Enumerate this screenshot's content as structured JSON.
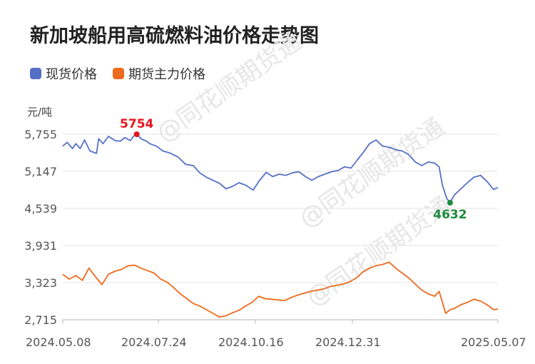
{
  "title": "新加坡船用高硫燃料油价格走势图",
  "watermark": "@同花顺期货通",
  "chart_data": {
    "type": "line",
    "yunit": "元/吨",
    "ylim": [
      2715,
      5755
    ],
    "yticks": [
      "5,755",
      "5,147",
      "4,539",
      "3,931",
      "3,323",
      "2,715"
    ],
    "ytick_values": [
      5755,
      5147,
      4539,
      3931,
      3323,
      2715
    ],
    "xticks": [
      "2024.05.08",
      "2024.07.24",
      "2024.10.16",
      "2024.12.31",
      "2025.05.07"
    ],
    "grid": true,
    "legend_position": "top-left",
    "n_points": 250,
    "series": [
      {
        "name": "现货价格",
        "color": "#5470c6",
        "points": [
          [
            0,
            5560
          ],
          [
            4,
            5620
          ],
          [
            9,
            5520
          ],
          [
            12,
            5600
          ],
          [
            16,
            5520
          ],
          [
            20,
            5660
          ],
          [
            25,
            5480
          ],
          [
            31,
            5440
          ],
          [
            33,
            5680
          ],
          [
            37,
            5600
          ],
          [
            42,
            5720
          ],
          [
            48,
            5650
          ],
          [
            53,
            5640
          ],
          [
            57,
            5700
          ],
          [
            62,
            5650
          ],
          [
            66,
            5740
          ],
          [
            68,
            5754
          ],
          [
            72,
            5680
          ],
          [
            77,
            5640
          ],
          [
            80,
            5600
          ],
          [
            86,
            5560
          ],
          [
            92,
            5480
          ],
          [
            98,
            5450
          ],
          [
            106,
            5380
          ],
          [
            113,
            5260
          ],
          [
            120,
            5240
          ],
          [
            126,
            5120
          ],
          [
            132,
            5050
          ],
          [
            138,
            5000
          ],
          [
            144,
            4950
          ],
          [
            150,
            4860
          ],
          [
            156,
            4900
          ],
          [
            162,
            4960
          ],
          [
            168,
            4920
          ],
          [
            175,
            4840
          ],
          [
            181,
            5000
          ],
          [
            187,
            5130
          ],
          [
            193,
            5060
          ],
          [
            199,
            5100
          ],
          [
            205,
            5080
          ],
          [
            211,
            5120
          ],
          [
            217,
            5140
          ],
          [
            223,
            5060
          ],
          [
            229,
            5000
          ],
          [
            235,
            5060
          ],
          [
            241,
            5100
          ],
          [
            247,
            5140
          ],
          [
            253,
            5160
          ],
          [
            259,
            5220
          ],
          [
            265,
            5200
          ],
          [
            271,
            5340
          ],
          [
            276,
            5450
          ],
          [
            282,
            5600
          ],
          [
            288,
            5660
          ],
          [
            294,
            5560
          ],
          [
            300,
            5540
          ],
          [
            306,
            5500
          ],
          [
            312,
            5480
          ],
          [
            318,
            5420
          ],
          [
            324,
            5300
          ],
          [
            330,
            5240
          ],
          [
            336,
            5300
          ],
          [
            342,
            5280
          ],
          [
            346,
            5220
          ],
          [
            349,
            4920
          ],
          [
            353,
            4700
          ],
          [
            356,
            4632
          ],
          [
            360,
            4760
          ],
          [
            366,
            4860
          ],
          [
            372,
            4960
          ],
          [
            378,
            5050
          ],
          [
            384,
            5080
          ],
          [
            390,
            4980
          ],
          [
            396,
            4850
          ],
          [
            400,
            4880
          ]
        ]
      },
      {
        "name": "期货主力价格",
        "color": "#ee6a1c",
        "points": [
          [
            0,
            3460
          ],
          [
            6,
            3380
          ],
          [
            12,
            3440
          ],
          [
            18,
            3360
          ],
          [
            24,
            3560
          ],
          [
            30,
            3420
          ],
          [
            36,
            3290
          ],
          [
            42,
            3460
          ],
          [
            48,
            3510
          ],
          [
            54,
            3540
          ],
          [
            60,
            3600
          ],
          [
            66,
            3610
          ],
          [
            72,
            3560
          ],
          [
            78,
            3520
          ],
          [
            84,
            3480
          ],
          [
            90,
            3380
          ],
          [
            96,
            3330
          ],
          [
            102,
            3240
          ],
          [
            108,
            3140
          ],
          [
            114,
            3060
          ],
          [
            120,
            2980
          ],
          [
            126,
            2940
          ],
          [
            132,
            2880
          ],
          [
            138,
            2820
          ],
          [
            144,
            2760
          ],
          [
            150,
            2780
          ],
          [
            156,
            2830
          ],
          [
            162,
            2870
          ],
          [
            168,
            2940
          ],
          [
            174,
            3000
          ],
          [
            180,
            3100
          ],
          [
            186,
            3060
          ],
          [
            192,
            3050
          ],
          [
            198,
            3040
          ],
          [
            204,
            3030
          ],
          [
            210,
            3080
          ],
          [
            216,
            3120
          ],
          [
            222,
            3150
          ],
          [
            228,
            3180
          ],
          [
            234,
            3200
          ],
          [
            240,
            3220
          ],
          [
            246,
            3260
          ],
          [
            252,
            3280
          ],
          [
            258,
            3300
          ],
          [
            264,
            3340
          ],
          [
            270,
            3400
          ],
          [
            276,
            3500
          ],
          [
            282,
            3560
          ],
          [
            288,
            3600
          ],
          [
            294,
            3620
          ],
          [
            300,
            3660
          ],
          [
            306,
            3560
          ],
          [
            312,
            3480
          ],
          [
            318,
            3400
          ],
          [
            324,
            3300
          ],
          [
            330,
            3200
          ],
          [
            336,
            3140
          ],
          [
            342,
            3100
          ],
          [
            346,
            3180
          ],
          [
            349,
            3000
          ],
          [
            352,
            2820
          ],
          [
            356,
            2880
          ],
          [
            360,
            2900
          ],
          [
            366,
            2960
          ],
          [
            372,
            3000
          ],
          [
            378,
            3050
          ],
          [
            384,
            3020
          ],
          [
            390,
            2960
          ],
          [
            396,
            2880
          ],
          [
            400,
            2890
          ]
        ]
      }
    ],
    "annotations": [
      {
        "label": "5754",
        "series": 0,
        "x_index": 68,
        "value": 5754,
        "color": "#e8141d",
        "position": "above"
      },
      {
        "label": "4632",
        "series": 0,
        "x_index": 356,
        "value": 4632,
        "color": "#1a8a3a",
        "position": "below"
      }
    ]
  }
}
